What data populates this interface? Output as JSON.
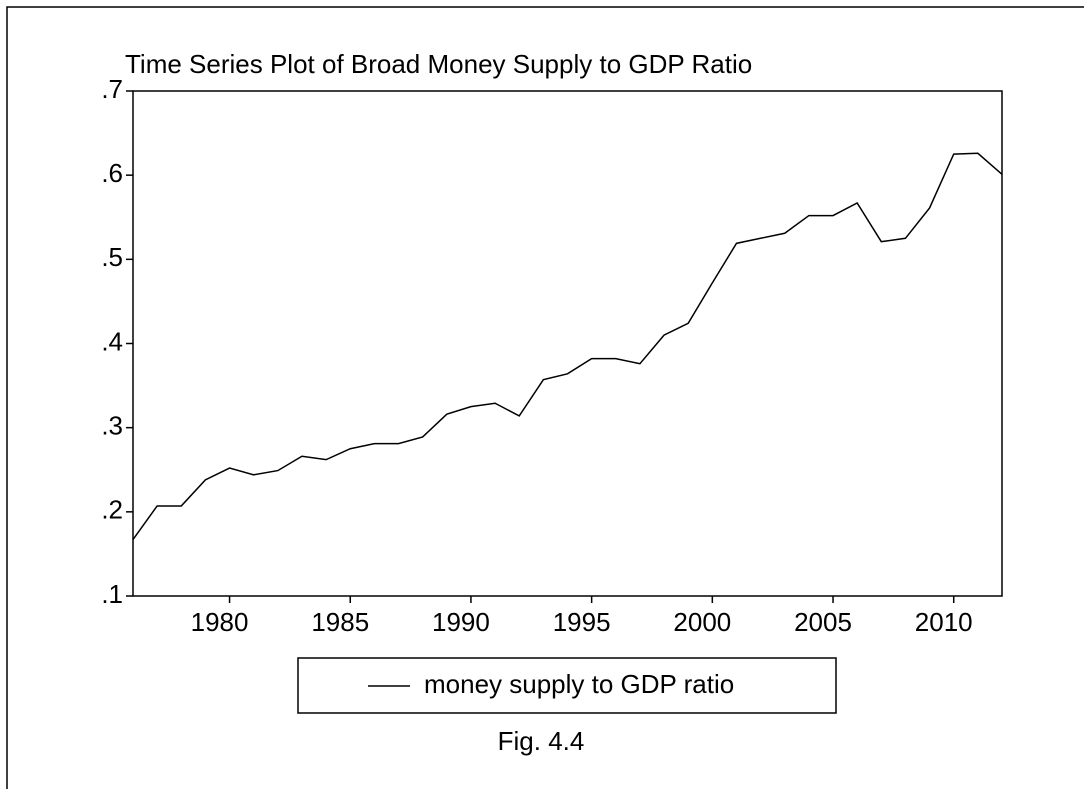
{
  "chart_data": {
    "type": "line",
    "title": "Time Series Plot of Broad Money Supply to GDP Ratio",
    "caption": "Fig. 4.4",
    "x": [
      1976,
      1977,
      1978,
      1979,
      1980,
      1981,
      1982,
      1983,
      1984,
      1985,
      1986,
      1987,
      1988,
      1989,
      1990,
      1991,
      1992,
      1993,
      1994,
      1995,
      1996,
      1997,
      1998,
      1999,
      2000,
      2001,
      2002,
      2003,
      2004,
      2005,
      2006,
      2007,
      2008,
      2009,
      2010,
      2011,
      2012
    ],
    "series": [
      {
        "name": "money supply to GDP ratio",
        "color": "#000000",
        "values": [
          0.167,
          0.207,
          0.207,
          0.238,
          0.252,
          0.244,
          0.249,
          0.266,
          0.262,
          0.275,
          0.281,
          0.281,
          0.289,
          0.316,
          0.325,
          0.329,
          0.314,
          0.357,
          0.364,
          0.382,
          0.382,
          0.376,
          0.41,
          0.424,
          0.472,
          0.519,
          0.525,
          0.531,
          0.552,
          0.552,
          0.567,
          0.521,
          0.525,
          0.561,
          0.625,
          0.626,
          0.601
        ]
      }
    ],
    "xlim": [
      1976,
      2012
    ],
    "xticks": [
      1980,
      1985,
      1990,
      1995,
      2000,
      2005,
      2010
    ],
    "ylim": [
      0.1,
      0.7
    ],
    "yticks": [
      {
        "value": 0.1,
        "label": ".1"
      },
      {
        "value": 0.2,
        "label": ".2"
      },
      {
        "value": 0.3,
        "label": ".3"
      },
      {
        "value": 0.4,
        "label": ".4"
      },
      {
        "value": 0.5,
        "label": ".5"
      },
      {
        "value": 0.6,
        "label": ".6"
      },
      {
        "value": 0.7,
        "label": ".7"
      }
    ],
    "grid": false,
    "legend": "bottom"
  }
}
